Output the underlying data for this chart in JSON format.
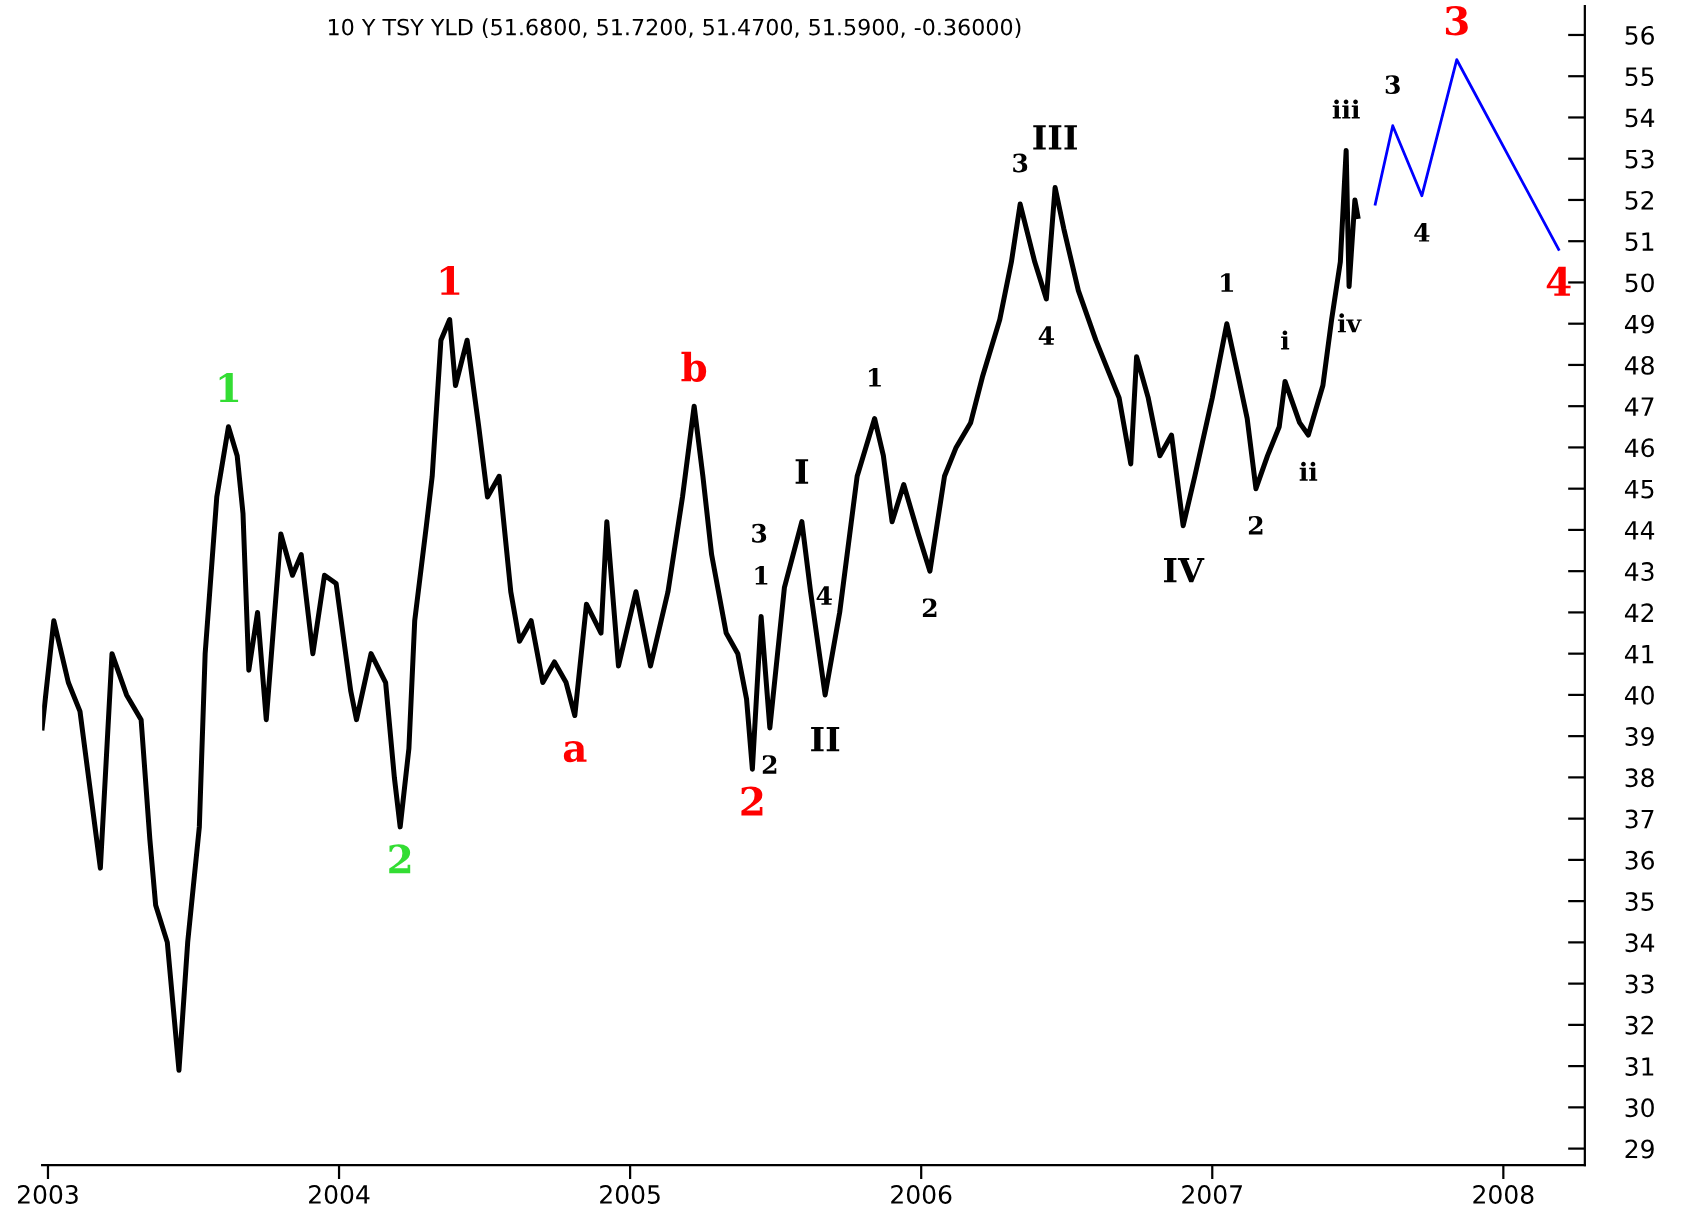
{
  "chart_data": {
    "type": "line",
    "title": "10 Y TSY YLD (51.6800, 51.7200, 51.4700, 51.5900, -0.36000)",
    "series": [
      {
        "color": "#000000",
        "x": [
          2002.98,
          2003.02,
          2003.07,
          2003.11,
          2003.18,
          2003.22,
          2003.27,
          2003.32,
          2003.35,
          2003.37,
          2003.41,
          2003.45,
          2003.48,
          2003.52,
          2003.54,
          2003.58,
          2003.62,
          2003.65,
          2003.67,
          2003.69,
          2003.72,
          2003.75,
          2003.8,
          2003.84,
          2003.87,
          2003.91,
          2003.95,
          2003.99,
          2004.04,
          2004.06,
          2004.11,
          2004.16,
          2004.19,
          2004.21,
          2004.24,
          2004.26,
          2004.3,
          2004.32,
          2004.35,
          2004.38,
          2004.4,
          2004.44,
          2004.48,
          2004.51,
          2004.55,
          2004.59,
          2004.62,
          2004.66,
          2004.7,
          2004.74,
          2004.78,
          2004.81,
          2004.85,
          2004.9,
          2004.92,
          2004.96,
          2005.02,
          2005.07,
          2005.13,
          2005.18,
          2005.22,
          2005.25,
          2005.28,
          2005.33,
          2005.37,
          2005.4,
          2005.42,
          2005.45,
          2005.48,
          2005.53,
          2005.59,
          2005.62,
          2005.67,
          2005.72,
          2005.78,
          2005.84,
          2005.87,
          2005.9,
          2005.94,
          2005.99,
          2006.03,
          2006.08,
          2006.12,
          2006.17,
          2006.21,
          2006.27,
          2006.31,
          2006.34,
          2006.39,
          2006.43,
          2006.46,
          2006.49,
          2006.54,
          2006.6,
          2006.64,
          2006.68,
          2006.72,
          2006.74,
          2006.78,
          2006.82,
          2006.86,
          2006.9,
          2006.94,
          2007.0,
          2007.05,
          2007.09,
          2007.12,
          2007.15,
          2007.19,
          2007.23,
          2007.25,
          2007.3,
          2007.33,
          2007.38,
          2007.41,
          2007.44,
          2007.46,
          2007.47,
          2007.49,
          2007.5
        ],
        "values": [
          39.2,
          41.8,
          40.3,
          39.6,
          35.8,
          41.0,
          40.0,
          39.4,
          36.5,
          34.9,
          34.0,
          30.9,
          34.0,
          36.8,
          41.0,
          44.8,
          46.5,
          45.8,
          44.4,
          40.6,
          42.0,
          39.4,
          43.9,
          42.9,
          43.4,
          41.0,
          42.9,
          42.7,
          40.1,
          39.4,
          41.0,
          40.3,
          38.0,
          36.8,
          38.7,
          41.8,
          44.1,
          45.3,
          48.6,
          49.1,
          47.5,
          48.6,
          46.5,
          44.8,
          45.3,
          42.5,
          41.3,
          41.8,
          40.3,
          40.8,
          40.3,
          39.5,
          42.2,
          41.5,
          44.2,
          40.7,
          42.5,
          40.7,
          42.5,
          44.8,
          47.0,
          45.3,
          43.4,
          41.5,
          41.0,
          39.9,
          38.2,
          41.9,
          39.2,
          42.6,
          44.2,
          42.5,
          40.0,
          42.0,
          45.3,
          46.7,
          45.8,
          44.2,
          45.1,
          43.9,
          43.0,
          45.3,
          46.0,
          46.6,
          47.7,
          49.1,
          50.5,
          51.9,
          50.5,
          49.6,
          52.3,
          51.3,
          49.8,
          48.6,
          47.9,
          47.2,
          45.6,
          48.2,
          47.2,
          45.8,
          46.3,
          44.1,
          45.3,
          47.2,
          49.0,
          47.7,
          46.7,
          45.0,
          45.8,
          46.5,
          47.6,
          46.6,
          46.3,
          47.5,
          49.1,
          50.5,
          53.2,
          49.9,
          52.0,
          51.6
        ]
      },
      {
        "color": "#0000ff",
        "x": [
          2007.56,
          2007.62,
          2007.72,
          2007.84,
          2008.19
        ],
        "values": [
          51.9,
          53.8,
          52.1,
          55.4,
          50.8
        ]
      }
    ],
    "xlim": [
      2002.98,
      2008.28
    ],
    "xticks": [
      2003,
      2004,
      2005,
      2006,
      2007,
      2008
    ],
    "ylim": [
      28.6,
      56.7
    ],
    "yticks": [
      29,
      30,
      31,
      32,
      33,
      34,
      35,
      36,
      37,
      38,
      39,
      40,
      41,
      42,
      43,
      44,
      45,
      46,
      47,
      48,
      49,
      50,
      51,
      52,
      53,
      54,
      55,
      56
    ],
    "grid": false,
    "legend": false,
    "marker": "none",
    "line_style": "solid",
    "annotations": [
      {
        "text": "1",
        "x": 2003.62,
        "y": 46.5
      },
      {
        "text": "2",
        "x": 2004.21,
        "y": 36.8
      },
      {
        "text": "1",
        "x": 2004.38,
        "y": 49.1
      },
      {
        "text": "a",
        "x": 2004.81,
        "y": 39.5
      },
      {
        "text": "b",
        "x": 2005.22,
        "y": 47.0
      },
      {
        "text": "2",
        "x": 2005.42,
        "y": 38.2
      },
      {
        "text": "1",
        "x": 2005.45,
        "y": 41.9
      },
      {
        "text": "2",
        "x": 2005.48,
        "y": 39.2
      },
      {
        "text": "3",
        "x": 2005.55,
        "y": 43.3
      },
      {
        "text": "4",
        "x": 2005.56,
        "y": 43.2
      },
      {
        "text": "I",
        "x": 2005.59,
        "y": 44.2
      },
      {
        "text": "II",
        "x": 2005.67,
        "y": 40.0
      },
      {
        "text": "1",
        "x": 2005.84,
        "y": 46.7
      },
      {
        "text": "2",
        "x": 2006.03,
        "y": 43.0
      },
      {
        "text": "3",
        "x": 2006.34,
        "y": 51.9
      },
      {
        "text": "III",
        "x": 2006.46,
        "y": 52.3
      },
      {
        "text": "4",
        "x": 2006.43,
        "y": 49.6
      },
      {
        "text": "IV",
        "x": 2006.9,
        "y": 44.1
      },
      {
        "text": "1",
        "x": 2007.05,
        "y": 49.0
      },
      {
        "text": "2",
        "x": 2007.15,
        "y": 45.0
      },
      {
        "text": "i",
        "x": 2007.25,
        "y": 47.6
      },
      {
        "text": "ii",
        "x": 2007.33,
        "y": 46.3
      },
      {
        "text": "iii",
        "x": 2007.46,
        "y": 53.2
      },
      {
        "text": "iv",
        "x": 2007.47,
        "y": 49.9
      },
      {
        "text": "3",
        "x": 2007.62,
        "y": 53.8
      },
      {
        "text": "4",
        "x": 2007.72,
        "y": 52.1
      },
      {
        "text": "3",
        "x": 2007.84,
        "y": 55.4
      },
      {
        "text": "4",
        "x": 2008.19,
        "y": 50.8
      }
    ]
  }
}
